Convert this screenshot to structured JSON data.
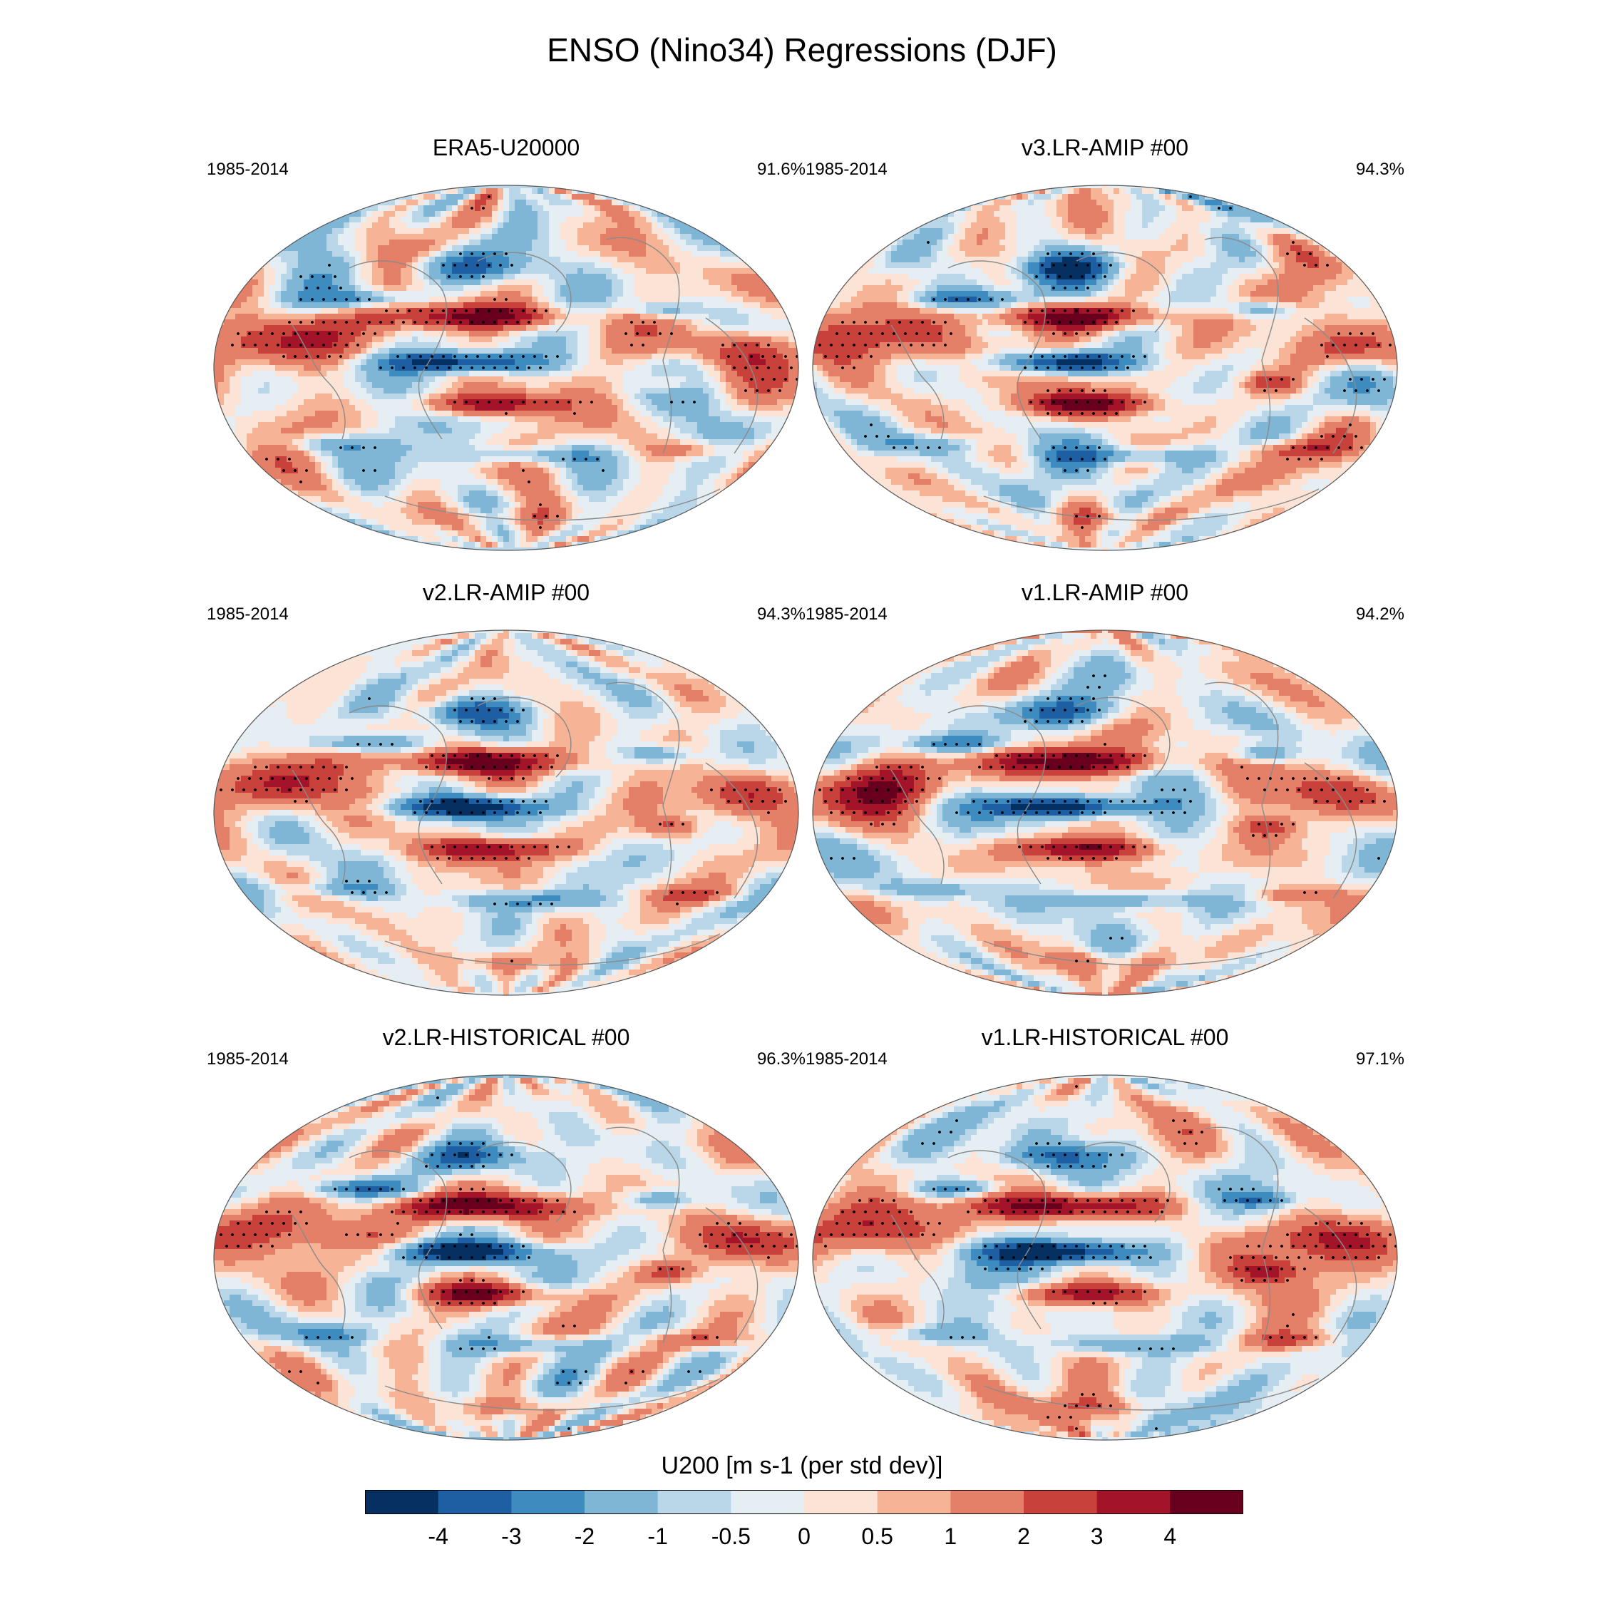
{
  "title": "ENSO (Nino34) Regressions (DJF)",
  "chart_data": {
    "type": "heatmap",
    "variable_label": "U200 [m s-1 (per std dev)]",
    "projection": "Robinson (global)",
    "panels": [
      {
        "name": "ERA5-U20000",
        "period": "1985-2014",
        "pct": "91.6%"
      },
      {
        "name": "v3.LR-AMIP  #00",
        "period": "1985-2014",
        "pct": "94.3%"
      },
      {
        "name": "v2.LR-AMIP  #00",
        "period": "1985-2014",
        "pct": "94.3%"
      },
      {
        "name": "v1.LR-AMIP  #00",
        "period": "1985-2014",
        "pct": "94.2%"
      },
      {
        "name": "v2.LR-HISTORICAL  #00",
        "period": "1985-2014",
        "pct": "96.3%"
      },
      {
        "name": "v1.LR-HISTORICAL  #00",
        "period": "1985-2014",
        "pct": "97.1%"
      }
    ],
    "colorbar": {
      "levels": [
        "-4",
        "-3",
        "-2",
        "-1",
        "-0.5",
        "0",
        "0.5",
        "1",
        "2",
        "3",
        "4"
      ],
      "colors": [
        "#053061",
        "#1e5fa4",
        "#3d8bbf",
        "#7fb6d6",
        "#b9d7e9",
        "#e5eef3",
        "#fbe3d6",
        "#f6b395",
        "#e58068",
        "#c8413a",
        "#a41428",
        "#67001f"
      ]
    }
  }
}
